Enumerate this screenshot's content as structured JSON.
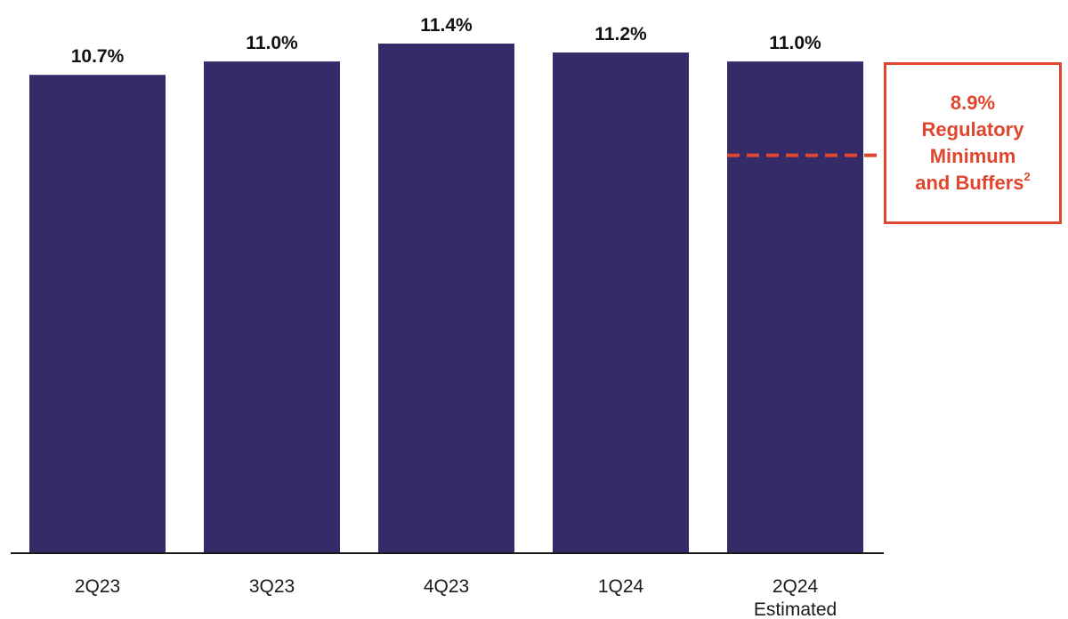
{
  "chart_data": {
    "type": "bar",
    "categories": [
      "2Q23",
      "3Q23",
      "4Q23",
      "1Q24",
      "2Q24"
    ],
    "category_sublabels": [
      "",
      "",
      "",
      "",
      "Estimated"
    ],
    "values": [
      10.7,
      11.0,
      11.4,
      11.2,
      11.0
    ],
    "value_labels": [
      "10.7%",
      "11.0%",
      "11.4%",
      "11.2%",
      "11.0%"
    ],
    "title": "",
    "xlabel": "",
    "ylabel": "",
    "ylim": [
      0,
      11.4
    ],
    "grid": false,
    "bar_color": "#352b69",
    "reference_line": {
      "value": 8.9,
      "style": "dashed",
      "color": "#e0462d",
      "applies_to": "2Q24",
      "label": {
        "value_text": "8.9%",
        "line1": "Regulatory",
        "line2": "Minimum",
        "line3": "and Buffers",
        "footnote": "2"
      }
    }
  },
  "colors": {
    "bar": "#352b69",
    "accent": "#e0462d",
    "axis": "#1a1a1a"
  }
}
